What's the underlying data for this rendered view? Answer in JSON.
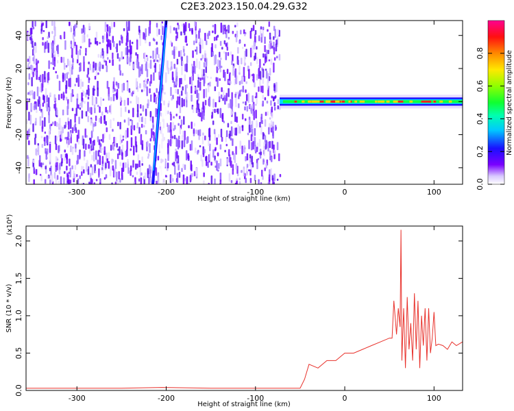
{
  "title": "C2E3.2023.150.04.29.G32",
  "chart_data": [
    {
      "type": "heatmap",
      "xlabel": "Height of straight line (km)",
      "ylabel": "Frequency (Hz)",
      "xlim": [
        -357,
        132
      ],
      "ylim": [
        -50,
        49
      ],
      "x_ticks": [
        -300,
        -200,
        -100,
        0,
        100
      ],
      "y_ticks": [
        -40,
        -20,
        0,
        20,
        40
      ],
      "colorbar": {
        "label": "Normalized spectral amplitude",
        "range": [
          0.0,
          1.0
        ],
        "ticks": [
          0.0,
          0.2,
          0.4,
          0.6,
          0.8
        ]
      },
      "features": {
        "noise_region_x": [
          -357,
          -73
        ],
        "streak_x": [
          -215,
          -200
        ],
        "signal_line_x": [
          -73,
          132
        ],
        "signal_line_freq": 0
      }
    },
    {
      "type": "line",
      "xlabel": "Height of straight line (km)",
      "ylabel": "SNR (10 * v/v)",
      "y_multiplier": "(x10⁴)",
      "xlim": [
        -357,
        132
      ],
      "ylim": [
        0,
        2.2
      ],
      "x_ticks": [
        -300,
        -200,
        -100,
        0,
        100
      ],
      "y_ticks": [
        "0.0",
        "0.5",
        "1.0",
        "1.5",
        "2.0"
      ],
      "series": [
        {
          "color": "#e8302a",
          "x": [
            -357,
            -300,
            -250,
            -205,
            -150,
            -100,
            -50,
            -45,
            -40,
            -30,
            -20,
            -10,
            0,
            10,
            20,
            30,
            40,
            50,
            53,
            55,
            58,
            60,
            62,
            63,
            64,
            66,
            68,
            70,
            72,
            74,
            76,
            78,
            80,
            82,
            84,
            86,
            88,
            90,
            92,
            94,
            96,
            98,
            100,
            102,
            105,
            110,
            115,
            120,
            125,
            132
          ],
          "y": [
            0.03,
            0.03,
            0.03,
            0.04,
            0.03,
            0.03,
            0.03,
            0.15,
            0.35,
            0.3,
            0.4,
            0.4,
            0.5,
            0.5,
            0.55,
            0.6,
            0.65,
            0.7,
            0.7,
            1.2,
            0.75,
            1.1,
            0.85,
            2.15,
            0.4,
            1.1,
            0.3,
            1.25,
            0.55,
            0.9,
            0.4,
            1.3,
            0.55,
            1.2,
            0.3,
            1.0,
            0.6,
            1.1,
            0.4,
            1.1,
            0.5,
            0.7,
            1.05,
            0.6,
            0.62,
            0.6,
            0.55,
            0.65,
            0.6,
            0.65
          ]
        }
      ]
    }
  ]
}
